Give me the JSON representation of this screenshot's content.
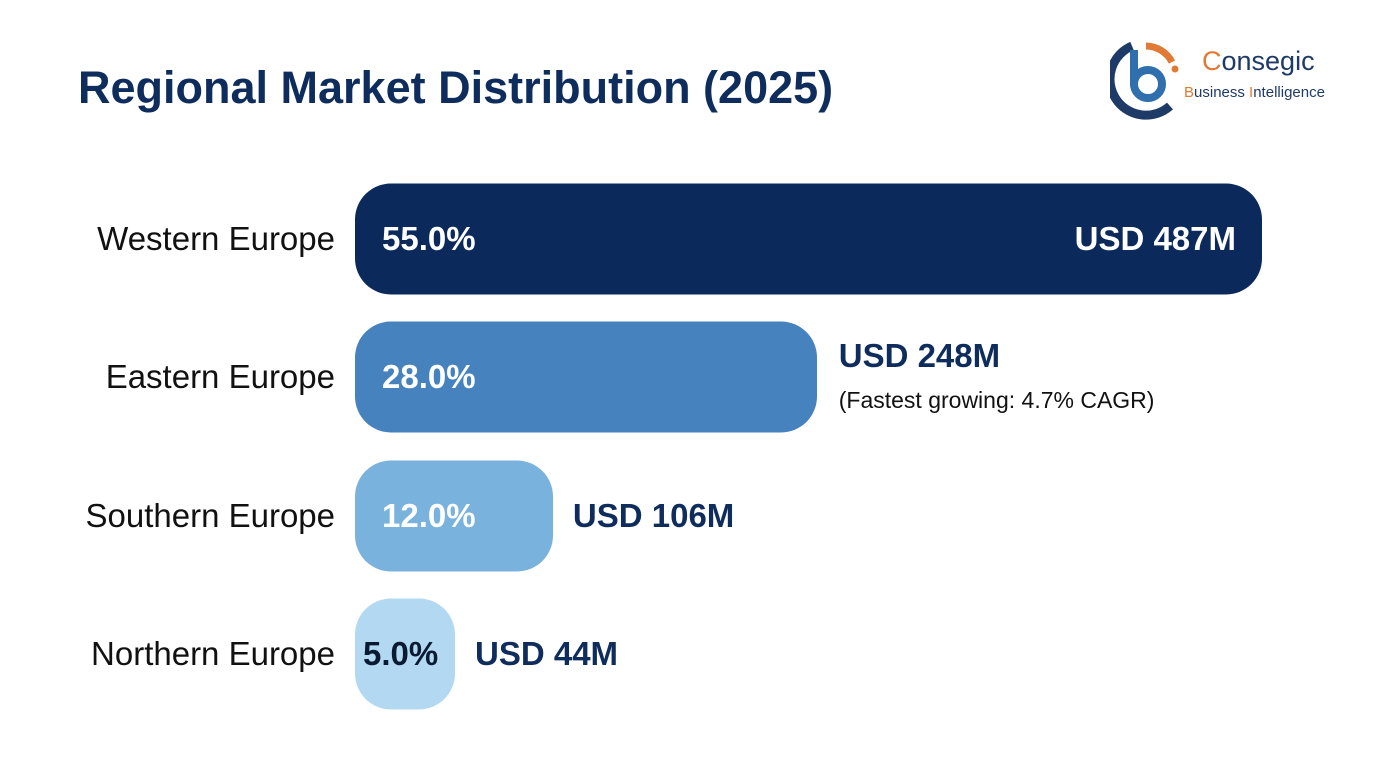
{
  "logo": {
    "brand": "Consegic",
    "tagline": "Business Intelligence"
  },
  "chart_data": {
    "type": "bar",
    "orientation": "horizontal",
    "title": "Regional Market Distribution (2025)",
    "categories": [
      "Western Europe",
      "Eastern Europe",
      "Southern Europe",
      "Northern Europe"
    ],
    "values": [
      55.0,
      28.0,
      12.0,
      5.0
    ],
    "percent_labels": [
      "55.0%",
      "28.0%",
      "12.0%",
      "5.0%"
    ],
    "value_labels": [
      "USD 487M",
      "USD 248M",
      "USD 106M",
      "USD 44M"
    ],
    "annotations": [
      "",
      "(Fastest growing: 4.7% CAGR)",
      "",
      ""
    ],
    "colors": [
      "#0b2a5b",
      "#4682be",
      "#7ab2de",
      "#b3d9f2"
    ],
    "grid": false,
    "legend": "none"
  }
}
